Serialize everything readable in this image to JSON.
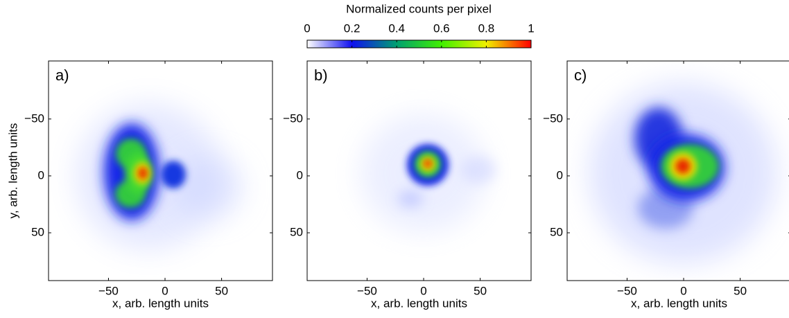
{
  "chart_data": [
    {
      "type": "heatmap",
      "label": "a)",
      "xlabel": "x, arb. length units",
      "ylabel": "y, arb. length units",
      "xlim": [
        -103,
        95
      ],
      "ylim": [
        -101,
        92
      ],
      "yaxis_inverted": true,
      "xticks": [
        {
          "value": -50,
          "label": "−50"
        },
        0,
        50
      ],
      "yticks": [
        {
          "value": -50,
          "label": "−50"
        },
        0,
        50
      ]
    },
    {
      "type": "heatmap",
      "label": "b)",
      "xlabel": "x, arb. length units",
      "xlim": [
        -103,
        95
      ],
      "ylim": [
        -101,
        92
      ],
      "yaxis_inverted": true,
      "xticks": [
        {
          "value": -50,
          "label": "−50"
        },
        0,
        50
      ],
      "yticks": [
        {
          "value": -50,
          "label": "−50"
        },
        0,
        50
      ]
    },
    {
      "type": "heatmap",
      "label": "c)",
      "xlabel": "x, arb. length units",
      "xlim": [
        -103,
        95
      ],
      "ylim": [
        -101,
        92
      ],
      "yaxis_inverted": true,
      "xticks": [
        {
          "value": -50,
          "label": "−50"
        },
        0,
        50
      ],
      "yticks": [
        {
          "value": -50,
          "label": "−50"
        },
        0,
        50
      ]
    }
  ],
  "colorbar": {
    "title": "Normalized counts per pixel",
    "lim": [
      0,
      1
    ],
    "ticks": [
      0,
      0.2,
      0.4,
      0.6,
      0.8,
      1
    ],
    "colormap": [
      "#ffffff",
      "#1010f0",
      "#00a070",
      "#40f000",
      "#f0f000",
      "#ff0000"
    ]
  }
}
